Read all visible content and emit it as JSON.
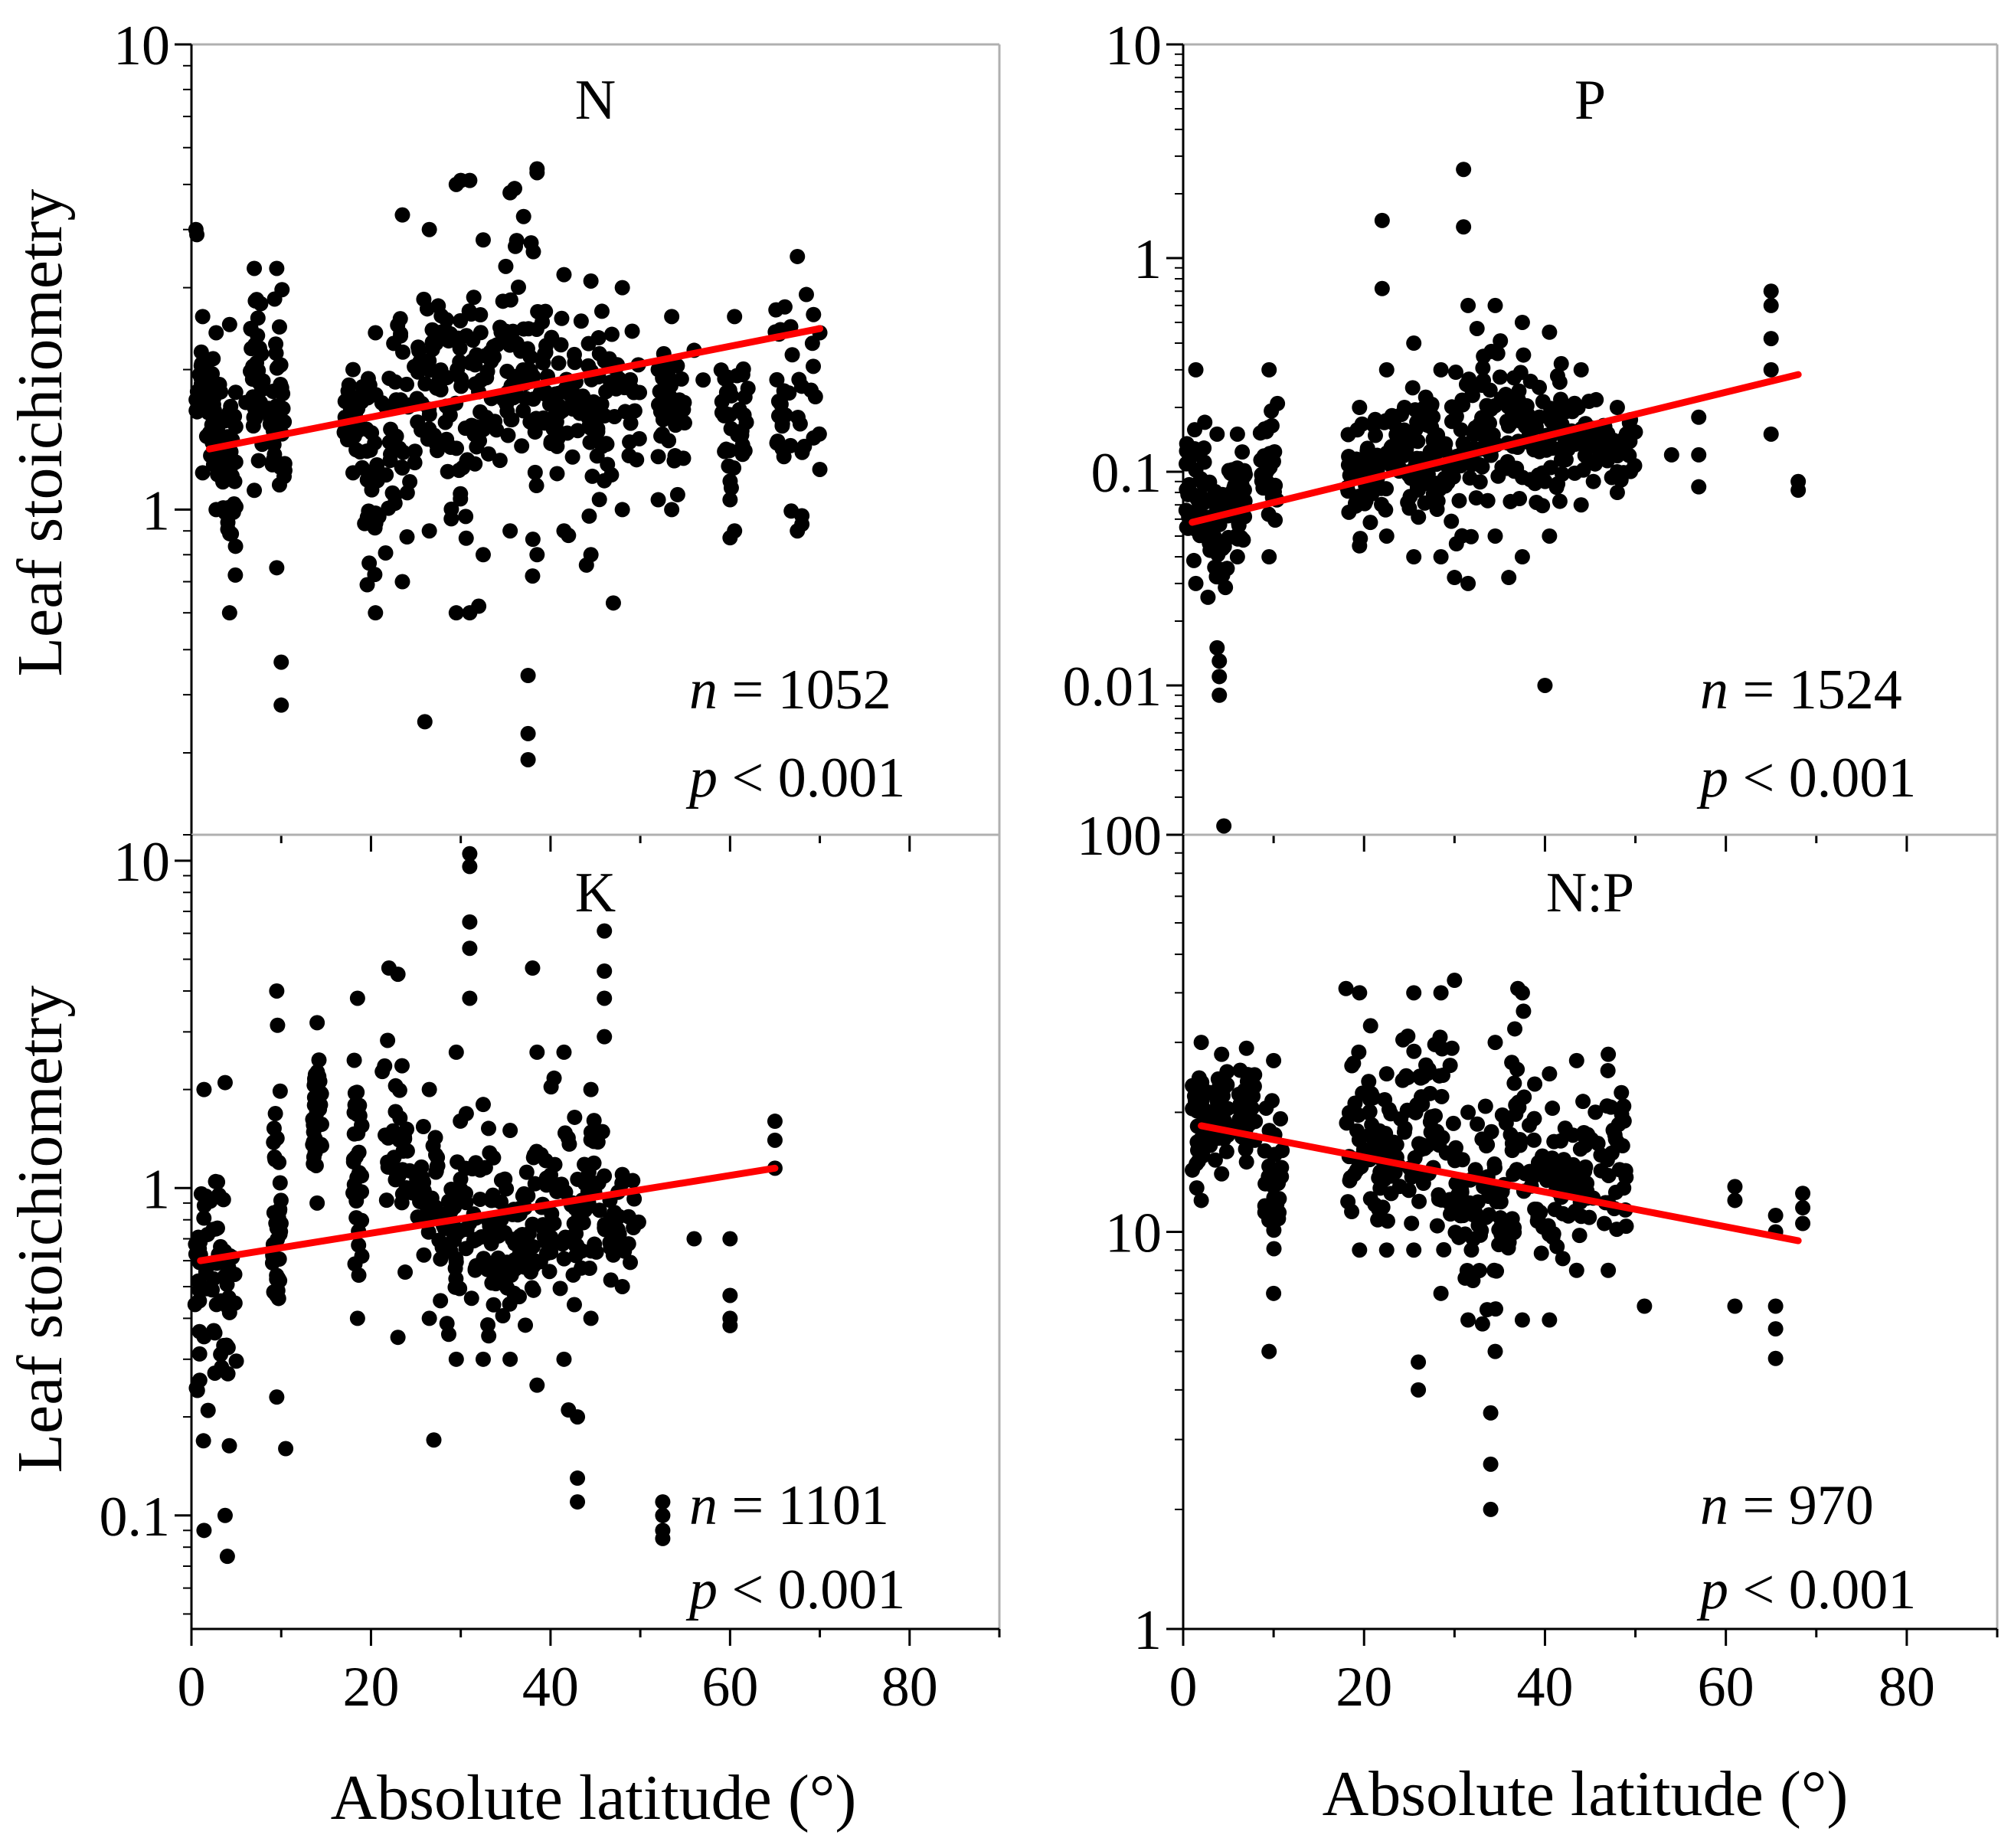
{
  "figure": {
    "x_axis_title": "Absolute latitude (°)",
    "y_axis_title": "Leaf stoichiometry",
    "colors": {
      "points": "#000000",
      "regression": "#ff0000",
      "frame": "#000000",
      "inner_frame": "#b0b0b0"
    }
  },
  "chart_data": [
    {
      "type": "scatter",
      "title": "N",
      "xlabel": "",
      "ylabel": "Leaf stoichiometry",
      "xlim": [
        0,
        90
      ],
      "ylim": [
        0.2,
        10
      ],
      "yscale": "log",
      "x_ticks": [],
      "y_ticks": [
        1,
        10
      ],
      "y_tick_labels": [
        "1",
        "10"
      ],
      "n_label": "n",
      "n_value": "= 1052",
      "p_label": "p",
      "p_value": "< 0.001",
      "regression": {
        "x": [
          2,
          70
        ],
        "y": [
          1.35,
          2.45
        ]
      },
      "clusters": [
        {
          "x": [
            0.5,
            2
          ],
          "y": [
            1.2,
            2.6
          ]
        },
        {
          "x": [
            2,
            3.5
          ],
          "y": [
            1.0,
            2.4
          ]
        },
        {
          "x": [
            3.5,
            5
          ],
          "y": [
            0.6,
            2.5
          ]
        },
        {
          "x": [
            6,
            8
          ],
          "y": [
            1.1,
            3.3
          ]
        },
        {
          "x": [
            8.5,
            10.5
          ],
          "y": [
            0.75,
            3.3
          ]
        },
        {
          "x": [
            17,
            19
          ],
          "y": [
            1.2,
            2.0
          ]
        },
        {
          "x": [
            19,
            22
          ],
          "y": [
            0.6,
            2.4
          ]
        },
        {
          "x": [
            22,
            25
          ],
          "y": [
            0.7,
            4.3
          ]
        },
        {
          "x": [
            25,
            28
          ],
          "y": [
            0.9,
            4.0
          ]
        },
        {
          "x": [
            28,
            31
          ],
          "y": [
            0.6,
            5.0
          ]
        },
        {
          "x": [
            31,
            34
          ],
          "y": [
            0.8,
            3.8
          ]
        },
        {
          "x": [
            34,
            37
          ],
          "y": [
            0.9,
            4.8
          ]
        },
        {
          "x": [
            37,
            40
          ],
          "y": [
            0.8,
            5.3
          ]
        },
        {
          "x": [
            40,
            43
          ],
          "y": [
            0.9,
            3.2
          ]
        },
        {
          "x": [
            43,
            46
          ],
          "y": [
            0.8,
            3.1
          ]
        },
        {
          "x": [
            46,
            50
          ],
          "y": [
            1.0,
            3.0
          ]
        },
        {
          "x": [
            52,
            55
          ],
          "y": [
            1.0,
            2.6
          ]
        },
        {
          "x": [
            59,
            62
          ],
          "y": [
            0.9,
            2.6
          ]
        },
        {
          "x": [
            65,
            70
          ],
          "y": [
            0.9,
            3.5
          ]
        }
      ],
      "points": [
        [
          0.5,
          4.0
        ],
        [
          0.6,
          3.9
        ],
        [
          10,
          0.47
        ],
        [
          10,
          0.38
        ],
        [
          26,
          0.35
        ],
        [
          31,
          0.6
        ],
        [
          32,
          0.62
        ],
        [
          37.5,
          0.44
        ],
        [
          37.5,
          0.33
        ],
        [
          37.5,
          0.29
        ],
        [
          38,
          0.72
        ],
        [
          42,
          0.88
        ],
        [
          44,
          0.76
        ],
        [
          47,
          0.63
        ],
        [
          30,
          5.1
        ],
        [
          31,
          5.1
        ],
        [
          38.5,
          5.4
        ],
        [
          36,
          4.9
        ],
        [
          52,
          2.0
        ],
        [
          52,
          1.3
        ],
        [
          52,
          1.05
        ],
        [
          56,
          2.2
        ],
        [
          57,
          1.9
        ],
        [
          60,
          0.87
        ],
        [
          60,
          1.05
        ],
        [
          60,
          1.6
        ],
        [
          66,
          1.3
        ],
        [
          66,
          1.8
        ],
        [
          68,
          0.93
        ],
        [
          68,
          0.97
        ],
        [
          68.5,
          2.9
        ],
        [
          70,
          1.22
        ],
        [
          70,
          2.4
        ]
      ]
    },
    {
      "type": "scatter",
      "title": "P",
      "xlabel": "",
      "ylabel": "",
      "xlim": [
        0,
        90
      ],
      "ylim": [
        0.002,
        10
      ],
      "yscale": "log",
      "x_ticks": [],
      "y_ticks": [
        0.01,
        0.1,
        1,
        10
      ],
      "y_tick_labels": [
        "0.01",
        "0.1",
        "1",
        "10"
      ],
      "n_label": "n",
      "n_value": "= 1524",
      "p_label": "p",
      "p_value": "< 0.001",
      "regression": {
        "x": [
          1,
          68
        ],
        "y": [
          0.058,
          0.285
        ]
      },
      "clusters": [
        {
          "x": [
            0.3,
            2.5
          ],
          "y": [
            0.03,
            0.3
          ]
        },
        {
          "x": [
            2.5,
            5
          ],
          "y": [
            0.015,
            0.15
          ]
        },
        {
          "x": [
            5,
            7
          ],
          "y": [
            0.04,
            0.15
          ]
        },
        {
          "x": [
            8.5,
            10.5
          ],
          "y": [
            0.04,
            0.3
          ]
        },
        {
          "x": [
            18,
            21
          ],
          "y": [
            0.045,
            0.2
          ]
        },
        {
          "x": [
            21,
            24
          ],
          "y": [
            0.05,
            0.3
          ]
        },
        {
          "x": [
            24,
            27
          ],
          "y": [
            0.04,
            0.4
          ]
        },
        {
          "x": [
            27,
            30
          ],
          "y": [
            0.04,
            0.3
          ]
        },
        {
          "x": [
            30,
            33
          ],
          "y": [
            0.03,
            0.6
          ]
        },
        {
          "x": [
            33,
            36
          ],
          "y": [
            0.05,
            0.6
          ]
        },
        {
          "x": [
            36,
            39
          ],
          "y": [
            0.04,
            0.5
          ]
        },
        {
          "x": [
            39,
            42
          ],
          "y": [
            0.05,
            0.45
          ]
        },
        {
          "x": [
            42,
            46
          ],
          "y": [
            0.07,
            0.3
          ]
        },
        {
          "x": [
            46,
            50
          ],
          "y": [
            0.08,
            0.2
          ]
        }
      ],
      "points": [
        [
          4,
          0.013
        ],
        [
          4,
          0.011
        ],
        [
          4,
          0.009
        ],
        [
          4.5,
          0.0022
        ],
        [
          22,
          1.5
        ],
        [
          22,
          0.72
        ],
        [
          31,
          2.6
        ],
        [
          31,
          1.4
        ],
        [
          30,
          0.032
        ],
        [
          36,
          0.032
        ],
        [
          40,
          0.01
        ],
        [
          54,
          0.12
        ],
        [
          57,
          0.18
        ],
        [
          57,
          0.12
        ],
        [
          57,
          0.085
        ],
        [
          65,
          0.7
        ],
        [
          65,
          0.6
        ],
        [
          65,
          0.42
        ],
        [
          65,
          0.3
        ],
        [
          65,
          0.15
        ],
        [
          68,
          0.09
        ],
        [
          68,
          0.082
        ]
      ]
    },
    {
      "type": "scatter",
      "title": "K",
      "xlabel": "Absolute latitude (°)",
      "ylabel": "Leaf stoichiometry",
      "xlim": [
        0,
        90
      ],
      "ylim": [
        0.045,
        12
      ],
      "yscale": "log",
      "x_ticks": [
        0,
        20,
        40,
        60,
        80
      ],
      "x_tick_labels": [
        "0",
        "20",
        "40",
        "60",
        "80"
      ],
      "y_ticks": [
        0.1,
        1,
        10
      ],
      "y_tick_labels": [
        "0.1",
        "1",
        "10"
      ],
      "n_label": "n",
      "n_value": "= 1101",
      "p_label": "p",
      "p_value": "< 0.001",
      "regression": {
        "x": [
          1,
          65
        ],
        "y": [
          0.6,
          1.15
        ]
      },
      "clusters": [
        {
          "x": [
            0.3,
            2.5
          ],
          "y": [
            0.09,
            2.0
          ]
        },
        {
          "x": [
            2.5,
            5
          ],
          "y": [
            0.1,
            2.1
          ]
        },
        {
          "x": [
            9,
            10
          ],
          "y": [
            0.23,
            4.0
          ]
        },
        {
          "x": [
            13.5,
            14.5
          ],
          "y": [
            0.9,
            3.2
          ]
        },
        {
          "x": [
            18,
            19
          ],
          "y": [
            0.4,
            3.8
          ]
        },
        {
          "x": [
            21,
            25
          ],
          "y": [
            0.35,
            4.5
          ]
        },
        {
          "x": [
            25,
            28
          ],
          "y": [
            0.4,
            2.0
          ]
        },
        {
          "x": [
            28,
            31
          ],
          "y": [
            0.3,
            2.6
          ]
        },
        {
          "x": [
            31,
            34
          ],
          "y": [
            0.3,
            1.8
          ]
        },
        {
          "x": [
            34,
            37
          ],
          "y": [
            0.3,
            1.5
          ]
        },
        {
          "x": [
            37,
            40
          ],
          "y": [
            0.25,
            2.6
          ]
        },
        {
          "x": [
            40,
            43
          ],
          "y": [
            0.3,
            2.6
          ]
        },
        {
          "x": [
            43,
            46
          ],
          "y": [
            0.4,
            2.0
          ]
        },
        {
          "x": [
            46,
            50
          ],
          "y": [
            0.5,
            1.1
          ]
        }
      ],
      "points": [
        [
          4,
          0.075
        ],
        [
          10.5,
          0.16
        ],
        [
          27,
          0.17
        ],
        [
          31,
          10.5
        ],
        [
          31,
          9.6
        ],
        [
          31,
          6.5
        ],
        [
          31,
          5.4
        ],
        [
          31,
          3.8
        ],
        [
          22,
          4.7
        ],
        [
          38,
          4.7
        ],
        [
          46,
          6.1
        ],
        [
          46,
          4.6
        ],
        [
          46,
          3.8
        ],
        [
          46,
          2.9
        ],
        [
          43,
          0.13
        ],
        [
          43,
          0.11
        ],
        [
          43,
          0.2
        ],
        [
          42,
          0.21
        ],
        [
          52.5,
          0.11
        ],
        [
          52.5,
          0.1
        ],
        [
          52.5,
          0.09
        ],
        [
          52.5,
          0.085
        ],
        [
          56,
          0.7
        ],
        [
          60,
          0.7
        ],
        [
          60,
          0.47
        ],
        [
          60,
          0.4
        ],
        [
          60,
          0.38
        ],
        [
          65,
          1.6
        ],
        [
          65,
          1.4
        ],
        [
          65,
          1.15
        ]
      ]
    },
    {
      "type": "scatter",
      "title": "N:P",
      "xlabel": "Absolute latitude (°)",
      "ylabel": "",
      "xlim": [
        0,
        90
      ],
      "ylim": [
        1,
        100
      ],
      "yscale": "log",
      "x_ticks": [
        0,
        20,
        40,
        60,
        80
      ],
      "x_tick_labels": [
        "0",
        "20",
        "40",
        "60",
        "80"
      ],
      "y_ticks": [
        1,
        10,
        100
      ],
      "y_tick_labels": [
        "1",
        "10",
        "100"
      ],
      "n_label": "n",
      "n_value": "= 970",
      "p_label": "p",
      "p_value": "< 0.001",
      "regression": {
        "x": [
          2,
          68
        ],
        "y": [
          18.5,
          9.5
        ]
      },
      "clusters": [
        {
          "x": [
            1,
            3
          ],
          "y": [
            12,
            30
          ]
        },
        {
          "x": [
            3.5,
            5
          ],
          "y": [
            14,
            28
          ]
        },
        {
          "x": [
            6,
            8
          ],
          "y": [
            15,
            29
          ]
        },
        {
          "x": [
            9,
            11
          ],
          "y": [
            7,
            27
          ]
        },
        {
          "x": [
            18,
            21
          ],
          "y": [
            9,
            40
          ]
        },
        {
          "x": [
            21,
            24
          ],
          "y": [
            9,
            25
          ]
        },
        {
          "x": [
            24,
            27
          ],
          "y": [
            9,
            40
          ]
        },
        {
          "x": [
            27,
            30
          ],
          "y": [
            7,
            40
          ]
        },
        {
          "x": [
            30,
            33
          ],
          "y": [
            6,
            20
          ]
        },
        {
          "x": [
            33,
            36
          ],
          "y": [
            5,
            30
          ]
        },
        {
          "x": [
            36,
            39
          ],
          "y": [
            6,
            40
          ]
        },
        {
          "x": [
            39,
            42
          ],
          "y": [
            6,
            25
          ]
        },
        {
          "x": [
            42,
            45
          ],
          "y": [
            8,
            27
          ]
        },
        {
          "x": [
            45,
            49
          ],
          "y": [
            8,
            28
          ]
        }
      ],
      "points": [
        [
          9.5,
          5.0
        ],
        [
          26,
          4.7
        ],
        [
          26,
          4.0
        ],
        [
          34,
          3.5
        ],
        [
          34,
          2.6
        ],
        [
          34,
          2.0
        ],
        [
          51,
          6.5
        ],
        [
          61,
          13
        ],
        [
          61,
          12
        ],
        [
          61,
          6.5
        ],
        [
          65.5,
          11
        ],
        [
          65.5,
          10
        ],
        [
          65.5,
          6.5
        ],
        [
          65.5,
          5.7
        ],
        [
          65.5,
          4.8
        ],
        [
          68.5,
          12.5
        ],
        [
          68.5,
          11.5
        ],
        [
          68.5,
          10.5
        ],
        [
          30,
          43
        ],
        [
          37,
          41
        ],
        [
          18,
          41
        ]
      ]
    }
  ]
}
